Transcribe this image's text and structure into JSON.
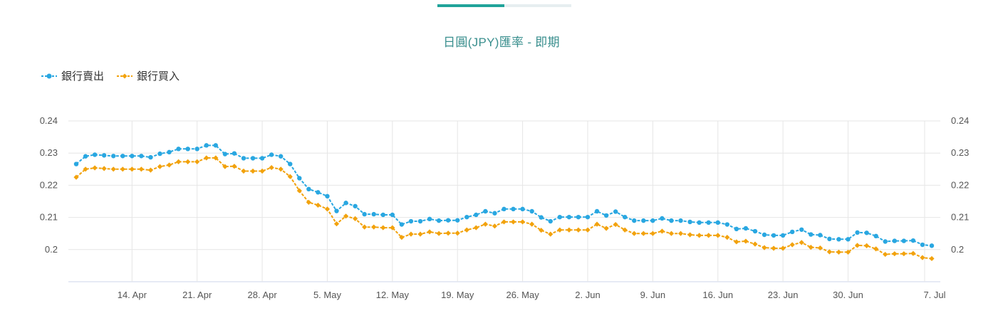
{
  "tabs": [
    {
      "label": "",
      "active": true
    },
    {
      "label": "",
      "active": false
    }
  ],
  "colors": {
    "accent": "#20a39a",
    "title": "#3a8f8e",
    "sell": "#29a7e1",
    "buy": "#f2a20c",
    "grid": "#e6e6e6"
  },
  "chart_data": {
    "type": "line",
    "title": "日圓(JPY)匯率 - 即期",
    "legend_position": "top-left",
    "grid": true,
    "ylim": [
      0.19,
      0.24
    ],
    "yticks": [
      "0.24",
      "0.23",
      "0.22",
      "0.21",
      "0.2"
    ],
    "xticks": [
      "14. Apr",
      "21. Apr",
      "28. Apr",
      "5. May",
      "12. May",
      "19. May",
      "26. May",
      "2. Jun",
      "9. Jun",
      "16. Jun",
      "23. Jun",
      "30. Jun",
      "7. Jul"
    ],
    "series": [
      {
        "name": "銀行賣出",
        "values": [
          0.2266,
          0.229,
          0.2295,
          0.2293,
          0.2291,
          0.2291,
          0.2291,
          0.2291,
          0.2287,
          0.2298,
          0.2303,
          0.2313,
          0.2313,
          0.2313,
          0.2324,
          0.2324,
          0.2297,
          0.2299,
          0.2284,
          0.2284,
          0.2284,
          0.2295,
          0.229,
          0.2266,
          0.2222,
          0.2188,
          0.2178,
          0.2166,
          0.212,
          0.2145,
          0.2135,
          0.211,
          0.211,
          0.2108,
          0.2108,
          0.2078,
          0.2088,
          0.2088,
          0.2095,
          0.209,
          0.2091,
          0.2091,
          0.2101,
          0.2108,
          0.2119,
          0.2113,
          0.2126,
          0.2126,
          0.2126,
          0.2119,
          0.21,
          0.2088,
          0.2101,
          0.2101,
          0.2101,
          0.2101,
          0.2119,
          0.2106,
          0.2118,
          0.2101,
          0.209,
          0.209,
          0.209,
          0.2097,
          0.209,
          0.209,
          0.2086,
          0.2084,
          0.2084,
          0.2084,
          0.2078,
          0.2064,
          0.2066,
          0.2057,
          0.2046,
          0.2044,
          0.2044,
          0.2055,
          0.2062,
          0.2047,
          0.2045,
          0.2033,
          0.2032,
          0.2032,
          0.2053,
          0.2052,
          0.2042,
          0.2025,
          0.2027,
          0.2027,
          0.2028,
          0.2015,
          0.2012
        ]
      },
      {
        "name": "銀行買入",
        "values": [
          0.2225,
          0.225,
          0.2254,
          0.2252,
          0.225,
          0.225,
          0.225,
          0.225,
          0.2247,
          0.2258,
          0.2263,
          0.2273,
          0.2273,
          0.2273,
          0.2285,
          0.2285,
          0.2258,
          0.2259,
          0.2244,
          0.2244,
          0.2244,
          0.2255,
          0.225,
          0.2227,
          0.2183,
          0.2147,
          0.2138,
          0.2126,
          0.208,
          0.2104,
          0.2096,
          0.207,
          0.207,
          0.2068,
          0.2068,
          0.2038,
          0.2048,
          0.2048,
          0.2055,
          0.205,
          0.2051,
          0.2051,
          0.2061,
          0.2068,
          0.2079,
          0.2073,
          0.2086,
          0.2086,
          0.2086,
          0.2079,
          0.206,
          0.2048,
          0.2061,
          0.2061,
          0.2061,
          0.2061,
          0.2079,
          0.2066,
          0.2078,
          0.2061,
          0.205,
          0.205,
          0.205,
          0.2057,
          0.205,
          0.205,
          0.2046,
          0.2044,
          0.2044,
          0.2044,
          0.2038,
          0.2024,
          0.2026,
          0.2017,
          0.2006,
          0.2004,
          0.2004,
          0.2015,
          0.2022,
          0.2007,
          0.2005,
          0.1993,
          0.1992,
          0.1992,
          0.2013,
          0.2012,
          0.2002,
          0.1985,
          0.1987,
          0.1987,
          0.1988,
          0.1975,
          0.1972
        ]
      }
    ]
  }
}
